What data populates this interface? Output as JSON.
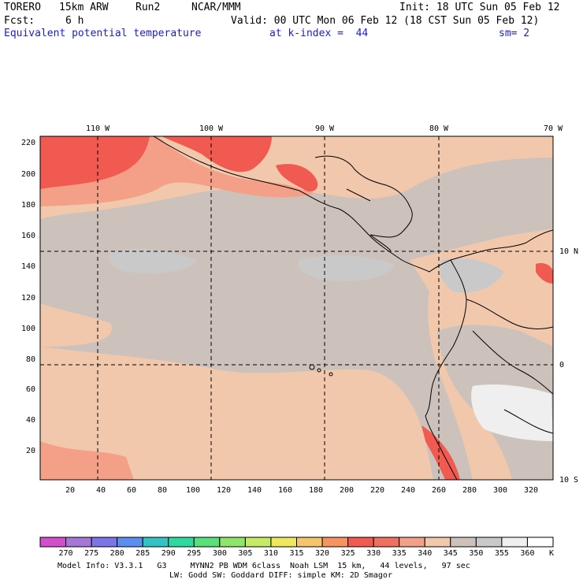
{
  "header": {
    "model": "TORERO",
    "resolution": "15km ARW",
    "run": "Run2",
    "org": "NCAR/MMM",
    "init": "Init: 18 UTC Sun 05 Feb 12",
    "fcst_label": "Fcst:",
    "fcst_value": "6 h",
    "valid": "Valid: 00 UTC Mon 06 Feb 12 (18 CST Sun 05 Feb 12)",
    "field": "Equivalent potential temperature",
    "level": "at k-index =  44",
    "smoothing": "sm= 2"
  },
  "map": {
    "top_lon_labels": [
      "110 W",
      "100 W",
      "90 W",
      "80 W",
      "70 W"
    ],
    "right_lat_labels": [
      "10 N",
      "0",
      "10 S"
    ],
    "y_ticks": [
      "220",
      "200",
      "180",
      "160",
      "140",
      "120",
      "100",
      "80",
      "60",
      "40",
      "20"
    ],
    "x_ticks": [
      "20",
      "40",
      "60",
      "80",
      "100",
      "120",
      "140",
      "160",
      "180",
      "200",
      "220",
      "240",
      "260",
      "280",
      "300",
      "320"
    ]
  },
  "colorbar": {
    "labels": [
      "270",
      "275",
      "280",
      "285",
      "290",
      "295",
      "300",
      "305",
      "310",
      "315",
      "320",
      "325",
      "330",
      "335",
      "340",
      "345",
      "350",
      "355",
      "360"
    ],
    "unit": "K",
    "colors": [
      "#d24fcc",
      "#a777d7",
      "#7a75e8",
      "#5a8ff0",
      "#35c2c4",
      "#2fd8a0",
      "#58e07a",
      "#8ee56a",
      "#c4ea66",
      "#efe85c",
      "#f6c46c",
      "#f79262",
      "#f05a50",
      "#f07060",
      "#f4a088",
      "#f2c8ad",
      "#cdc2bb",
      "#c9c9c9",
      "#efefef"
    ]
  },
  "footer": {
    "line1": "Model Info: V3.3.1   G3     MYNN2 PB WDM 6class  Noah LSM  15 km,   44 levels,   97 sec",
    "line2": "LW: Godd SW: Goddard DIFF: simple KM: 2D Smagor"
  }
}
